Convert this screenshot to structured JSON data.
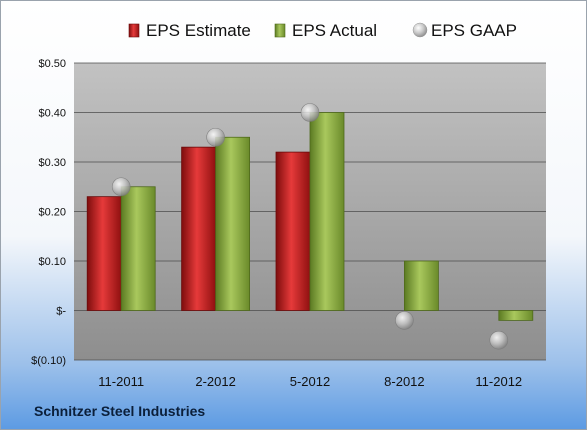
{
  "company": "Schnitzer Steel Industries",
  "chart_data": {
    "type": "bar",
    "title": "",
    "xlabel": "",
    "ylabel": "",
    "categories": [
      "11-2011",
      "2-2012",
      "5-2012",
      "8-2012",
      "11-2012"
    ],
    "series": [
      {
        "name": "EPS Estimate",
        "kind": "bar",
        "color": "#c81e1e",
        "values": [
          0.23,
          0.33,
          0.32,
          null,
          null
        ]
      },
      {
        "name": "EPS Actual",
        "kind": "bar",
        "color": "#8aac3c",
        "values": [
          0.25,
          0.35,
          0.4,
          0.1,
          -0.02
        ]
      },
      {
        "name": "EPS GAAP",
        "kind": "marker",
        "color": "#b8b8b8",
        "values": [
          0.25,
          0.35,
          0.4,
          -0.02,
          -0.06
        ]
      }
    ],
    "ylim": [
      -0.1,
      0.5
    ],
    "y_ticks": [
      {
        "value": 0.5,
        "label": "$0.50"
      },
      {
        "value": 0.4,
        "label": "$0.40"
      },
      {
        "value": 0.3,
        "label": "$0.30"
      },
      {
        "value": 0.2,
        "label": "$0.20"
      },
      {
        "value": 0.1,
        "label": "$0.10"
      },
      {
        "value": 0.0,
        "label": "$-"
      },
      {
        "value": -0.1,
        "label": "$(0.10)"
      }
    ],
    "grid": true,
    "legend_position": "top"
  }
}
